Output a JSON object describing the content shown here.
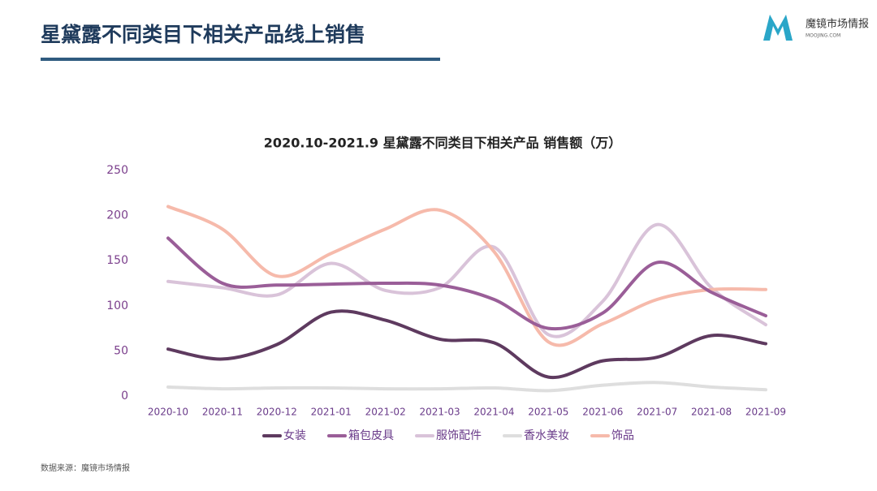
{
  "header": {
    "title": "星黛露不同类目下相关产品线上销售"
  },
  "logo": {
    "name": "魔镜市场情报",
    "domain": "MOOJING.COM"
  },
  "footer": {
    "source": "数据来源：魔镜市场情报"
  },
  "chart_data": {
    "type": "line",
    "title": "2020.10-2021.9 星黛露不同类目下相关产品 销售额（万）",
    "categories": [
      "2020-10",
      "2020-11",
      "2020-12",
      "2021-01",
      "2021-02",
      "2021-03",
      "2021-04",
      "2021-05",
      "2021-06",
      "2021-07",
      "2021-08",
      "2021-09"
    ],
    "series": [
      {
        "name": "女装",
        "color": "#5e3a5f",
        "values": [
          52,
          41,
          57,
          93,
          84,
          63,
          59,
          21,
          39,
          43,
          67,
          58
        ]
      },
      {
        "name": "箱包皮具",
        "color": "#9a5e98",
        "values": [
          175,
          125,
          123,
          124,
          125,
          123,
          107,
          75,
          92,
          148,
          115,
          89
        ]
      },
      {
        "name": "服饰配件",
        "color": "#d9c3d9",
        "values": [
          127,
          120,
          112,
          147,
          117,
          120,
          165,
          68,
          105,
          190,
          120,
          79
        ]
      },
      {
        "name": "香水美妆",
        "color": "#dedede",
        "values": [
          10,
          8,
          9,
          9,
          8,
          8,
          9,
          6,
          12,
          15,
          10,
          7
        ]
      },
      {
        "name": "饰品",
        "color": "#f6baab",
        "values": [
          210,
          185,
          133,
          158,
          185,
          206,
          160,
          60,
          80,
          107,
          118,
          118
        ]
      }
    ],
    "ylim": [
      0,
      250
    ],
    "yticks": [
      0,
      50,
      100,
      150,
      200,
      250
    ],
    "grid": false,
    "legend": "bottom",
    "smooth": true
  }
}
